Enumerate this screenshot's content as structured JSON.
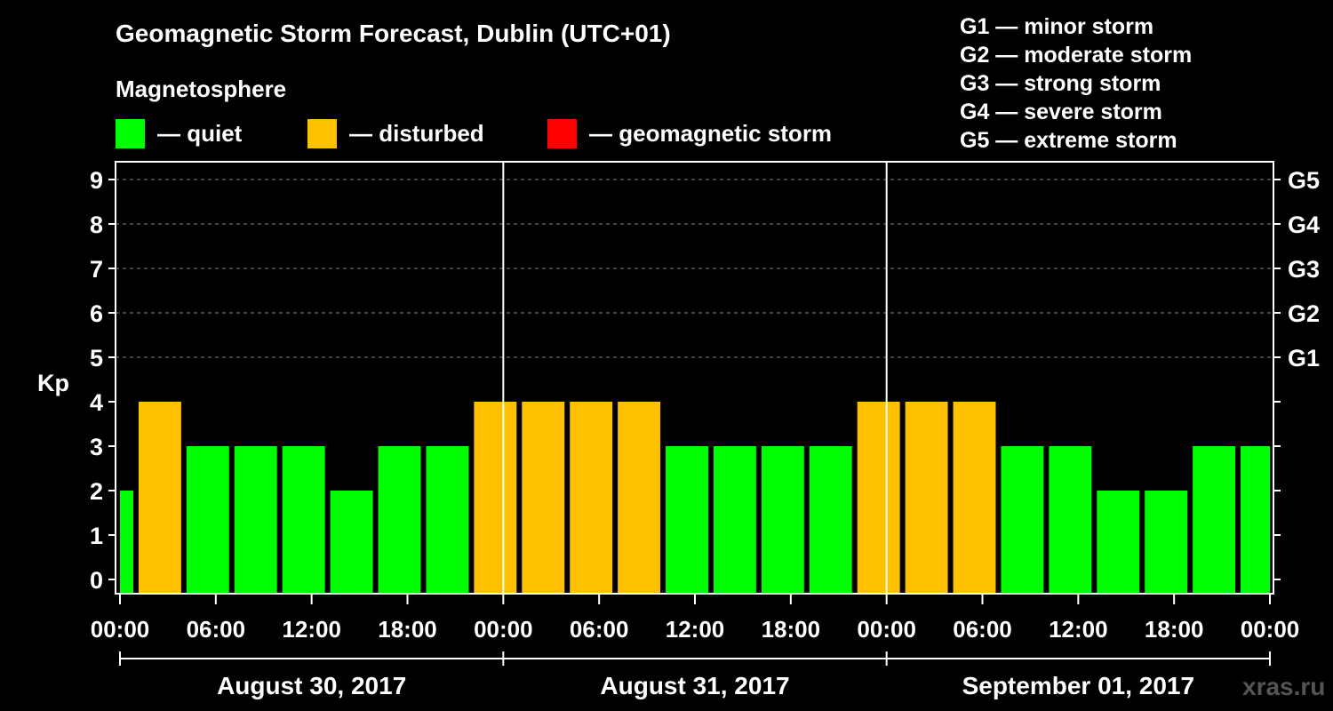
{
  "title": "Geomagnetic Storm Forecast, Dublin (UTC+01)",
  "magnetosphere": {
    "heading": "Magnetosphere",
    "items": [
      {
        "key": "quiet",
        "label": "— quiet",
        "color": "#00ff00"
      },
      {
        "key": "disturbed",
        "label": "— disturbed",
        "color": "#ffc000"
      },
      {
        "key": "storm",
        "label": "— geomagnetic storm",
        "color": "#ff0000"
      }
    ]
  },
  "storm_levels": [
    "G1 — minor storm",
    "G2 — moderate storm",
    "G3 — strong storm",
    "G4 — severe storm",
    "G5 — extreme storm"
  ],
  "watermark": "xras.ru",
  "chart_data": {
    "type": "bar",
    "title": "Geomagnetic Storm Forecast, Dublin (UTC+01)",
    "ylabel": "Kp",
    "ylim": [
      0,
      9
    ],
    "y_ticks": [
      "0",
      "1",
      "2",
      "3",
      "4",
      "5",
      "6",
      "7",
      "8",
      "9"
    ],
    "right_ticks": [
      {
        "kp": 5,
        "label": "G1"
      },
      {
        "kp": 6,
        "label": "G2"
      },
      {
        "kp": 7,
        "label": "G3"
      },
      {
        "kp": 8,
        "label": "G4"
      },
      {
        "kp": 9,
        "label": "G5"
      }
    ],
    "x_range_hours": [
      0,
      72
    ],
    "x_tick_labels": [
      "00:00",
      "06:00",
      "12:00",
      "18:00",
      "00:00",
      "06:00",
      "12:00",
      "18:00",
      "00:00",
      "06:00",
      "12:00",
      "18:00",
      "00:00"
    ],
    "days": [
      "August 30, 2017",
      "August 31, 2017",
      "September 01, 2017"
    ],
    "bar_times": [
      "00:00-01:00",
      "01:00-04:00",
      "04:00-07:00",
      "07:00-10:00",
      "10:00-13:00",
      "13:00-16:00",
      "16:00-19:00",
      "19:00-22:00",
      "22:00-01:00",
      "01:00-04:00",
      "04:00-07:00",
      "07:00-10:00",
      "10:00-13:00",
      "13:00-16:00",
      "16:00-19:00",
      "19:00-22:00",
      "22:00-01:00",
      "01:00-04:00",
      "04:00-07:00",
      "07:00-10:00",
      "10:00-13:00",
      "13:00-16:00",
      "16:00-19:00",
      "19:00-22:00",
      "22:00-00:00"
    ],
    "bars": [
      {
        "start_h": 0,
        "end_h": 1,
        "kp": 2
      },
      {
        "start_h": 1,
        "end_h": 4,
        "kp": 4
      },
      {
        "start_h": 4,
        "end_h": 7,
        "kp": 3
      },
      {
        "start_h": 7,
        "end_h": 10,
        "kp": 3
      },
      {
        "start_h": 10,
        "end_h": 13,
        "kp": 3
      },
      {
        "start_h": 13,
        "end_h": 16,
        "kp": 2
      },
      {
        "start_h": 16,
        "end_h": 19,
        "kp": 3
      },
      {
        "start_h": 19,
        "end_h": 22,
        "kp": 3
      },
      {
        "start_h": 22,
        "end_h": 25,
        "kp": 4
      },
      {
        "start_h": 25,
        "end_h": 28,
        "kp": 4
      },
      {
        "start_h": 28,
        "end_h": 31,
        "kp": 4
      },
      {
        "start_h": 31,
        "end_h": 34,
        "kp": 4
      },
      {
        "start_h": 34,
        "end_h": 37,
        "kp": 3
      },
      {
        "start_h": 37,
        "end_h": 40,
        "kp": 3
      },
      {
        "start_h": 40,
        "end_h": 43,
        "kp": 3
      },
      {
        "start_h": 43,
        "end_h": 46,
        "kp": 3
      },
      {
        "start_h": 46,
        "end_h": 49,
        "kp": 4
      },
      {
        "start_h": 49,
        "end_h": 52,
        "kp": 4
      },
      {
        "start_h": 52,
        "end_h": 55,
        "kp": 4
      },
      {
        "start_h": 55,
        "end_h": 58,
        "kp": 3
      },
      {
        "start_h": 58,
        "end_h": 61,
        "kp": 3
      },
      {
        "start_h": 61,
        "end_h": 64,
        "kp": 2
      },
      {
        "start_h": 64,
        "end_h": 67,
        "kp": 2
      },
      {
        "start_h": 67,
        "end_h": 70,
        "kp": 3
      },
      {
        "start_h": 70,
        "end_h": 72,
        "kp": 3
      }
    ],
    "color_rule": {
      "quiet_max_kp": 3,
      "disturbed_max_kp": 4
    },
    "colors": {
      "quiet": "#00ff00",
      "disturbed": "#ffc000",
      "storm": "#ff0000",
      "grid": "#808080",
      "axis": "#ffffff"
    }
  }
}
